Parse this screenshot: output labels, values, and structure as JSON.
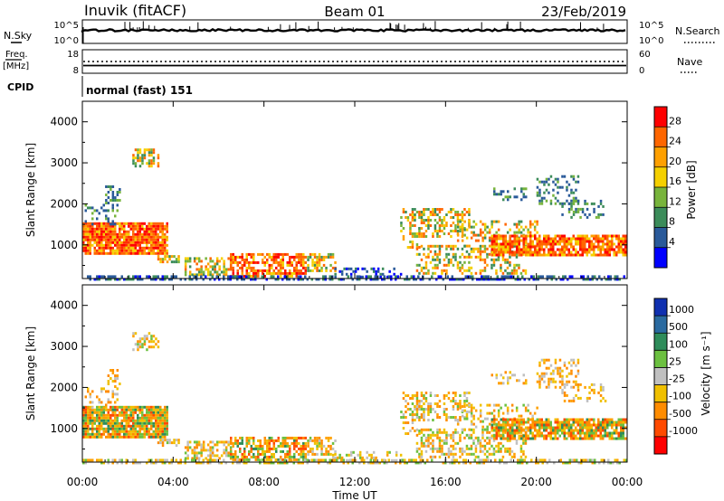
{
  "header": {
    "radar": "Inuvik (fitACF)",
    "beam": "Beam 01",
    "date": "23/Feb/2019"
  },
  "nsky_panel": {
    "left_label": "N.Sky",
    "left_ticks": [
      "10^5",
      "10^0"
    ],
    "right_ticks": [
      "10^5",
      "10^0"
    ],
    "right_label": "N.Search"
  },
  "freq_panel": {
    "left_label_top": "Freq.",
    "left_label_bottom": "[MHz]",
    "left_ticks": [
      "18",
      "8"
    ],
    "right_ticks": [
      "60",
      "0"
    ],
    "right_label": "Nave"
  },
  "cpid": {
    "label": "CPID",
    "value": "normal (fast) 151"
  },
  "chart_data": [
    {
      "type": "heatmap",
      "name": "power",
      "ylabel": "Slant Range [km]",
      "ylim": [
        180,
        4500
      ],
      "yticks": [
        "4000",
        "3000",
        "2000",
        "1000"
      ],
      "colorbar_label": "Power [dB]",
      "colorbar_ticks": [
        "28",
        "24",
        "20",
        "16",
        "12",
        "8",
        "4"
      ],
      "colorbar_colors": [
        "#ff0000",
        "#ff6600",
        "#ffa000",
        "#f5d000",
        "#78b43c",
        "#3c8c5a",
        "#2a5a9a",
        "#0000ff"
      ]
    },
    {
      "type": "heatmap",
      "name": "velocity",
      "ylabel": "Slant Range [km]",
      "ylim": [
        180,
        4500
      ],
      "yticks": [
        "4000",
        "3000",
        "2000",
        "1000"
      ],
      "colorbar_label": "Velocity [m s⁻¹]",
      "colorbar_ticks": [
        "1000",
        "500",
        "100",
        "25",
        "-25",
        "-100",
        "-500",
        "-1000"
      ],
      "colorbar_colors": [
        "#1030b0",
        "#2a6aa0",
        "#2e8c5a",
        "#6cc040",
        "#c0c0c0",
        "#f0c000",
        "#ff8c00",
        "#ff4a00",
        "#ff0000"
      ]
    }
  ],
  "x_axis": {
    "ticks": [
      "00:00",
      "04:00",
      "08:00",
      "12:00",
      "16:00",
      "20:00",
      "00:00"
    ],
    "label": "Time UT"
  }
}
